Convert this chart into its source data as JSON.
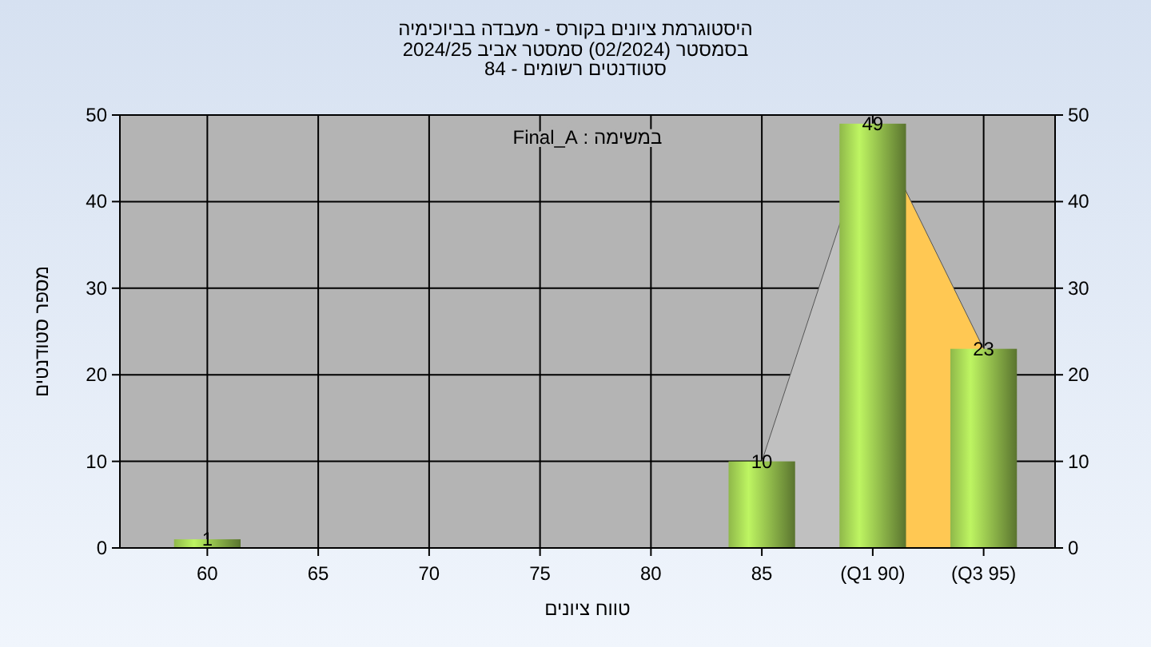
{
  "chart_data": {
    "type": "bar",
    "title": "היסטוגרמת ציונים בקורס - מעבדה בביוכימיה",
    "subtitle": "בסמסטר  (02/2024)  סמסטר אביב 2024/25\nסטודנטים רשומים - 84",
    "xlabel": "טווח ציונים",
    "ylabel": "מספר סטודנטים",
    "annotations": [
      "במשימה : Final_A"
    ],
    "categories": [
      "60",
      "65",
      "70",
      "75",
      "80",
      "85",
      "(Q1 90)",
      "(Q3 95)"
    ],
    "series": [
      {
        "type": "area",
        "color": "#c0c0c0",
        "values": [
          null,
          null,
          null,
          null,
          null,
          10,
          49,
          null
        ]
      },
      {
        "type": "area",
        "color": "#ffc853",
        "values": [
          null,
          null,
          null,
          null,
          null,
          null,
          49,
          23
        ]
      },
      {
        "color": "#8fb84a",
        "values": [
          1,
          0,
          0,
          0,
          0,
          10,
          49,
          23
        ],
        "value_labels": [
          "1",
          null,
          null,
          null,
          null,
          "10",
          "49",
          "23"
        ]
      }
    ],
    "ylim": [
      0,
      50
    ],
    "yticks": [
      0,
      10,
      20,
      30,
      40,
      50
    ],
    "y2lim": [
      0,
      50
    ],
    "y2ticks": [
      0,
      10,
      20,
      30,
      40,
      50
    ],
    "grid": true
  }
}
